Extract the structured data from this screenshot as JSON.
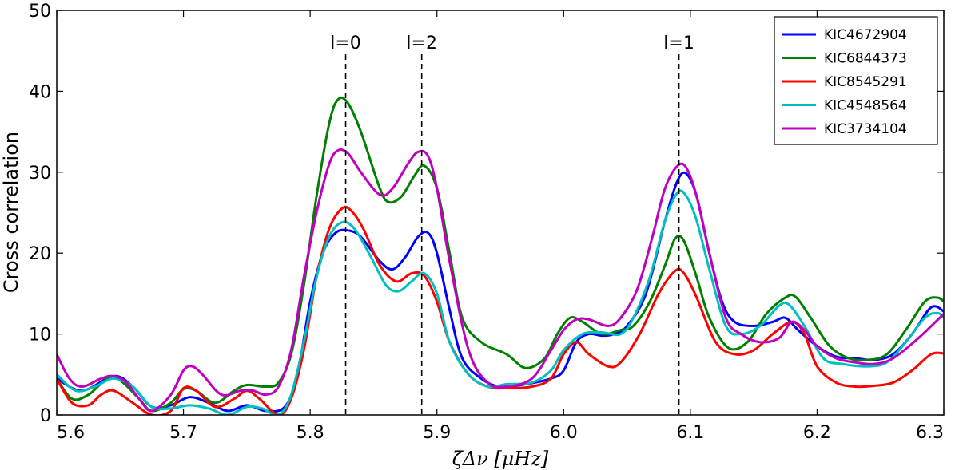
{
  "chart_data": {
    "type": "line",
    "title": "",
    "xlabel": "ζΔν [μHz]",
    "ylabel": "Cross correlation",
    "xlim": [
      5.6,
      6.3
    ],
    "ylim": [
      0,
      50
    ],
    "xticks": [
      5.6,
      5.7,
      5.8,
      5.9,
      6.0,
      6.1,
      6.2,
      6.3
    ],
    "xtick_labels": [
      "5.6",
      "5.7",
      "5.8",
      "5.9",
      "6.0",
      "6.1",
      "6.2",
      "6.3"
    ],
    "yticks": [
      0,
      10,
      20,
      30,
      40,
      50
    ],
    "ytick_labels": [
      "0",
      "10",
      "20",
      "30",
      "40",
      "50"
    ],
    "grid": false,
    "legend_position": "top-right",
    "annotations": [
      {
        "label": "l=0",
        "x": 5.828
      },
      {
        "label": "l=2",
        "x": 5.888
      },
      {
        "label": "l=1",
        "x": 6.091
      }
    ],
    "series": [
      {
        "name": "KIC4672904",
        "color": "#0000ff",
        "points": [
          [
            5.6,
            4.5
          ],
          [
            5.62,
            3.0
          ],
          [
            5.645,
            4.8
          ],
          [
            5.66,
            3.5
          ],
          [
            5.675,
            1.0
          ],
          [
            5.69,
            1.2
          ],
          [
            5.705,
            2.2
          ],
          [
            5.72,
            1.5
          ],
          [
            5.735,
            0.5
          ],
          [
            5.75,
            1.2
          ],
          [
            5.765,
            0.5
          ],
          [
            5.78,
            1.0
          ],
          [
            5.79,
            5.0
          ],
          [
            5.8,
            14.0
          ],
          [
            5.81,
            20.0
          ],
          [
            5.82,
            22.5
          ],
          [
            5.83,
            22.8
          ],
          [
            5.84,
            22.0
          ],
          [
            5.855,
            19.0
          ],
          [
            5.865,
            18.0
          ],
          [
            5.875,
            19.5
          ],
          [
            5.885,
            22.0
          ],
          [
            5.893,
            22.5
          ],
          [
            5.9,
            20.0
          ],
          [
            5.91,
            13.0
          ],
          [
            5.92,
            7.0
          ],
          [
            5.935,
            4.5
          ],
          [
            5.95,
            3.5
          ],
          [
            5.97,
            3.8
          ],
          [
            5.99,
            4.5
          ],
          [
            6.0,
            5.5
          ],
          [
            6.01,
            9.0
          ],
          [
            6.02,
            10.0
          ],
          [
            6.03,
            9.8
          ],
          [
            6.04,
            10.0
          ],
          [
            6.05,
            11.0
          ],
          [
            6.065,
            15.0
          ],
          [
            6.08,
            24.0
          ],
          [
            6.09,
            29.0
          ],
          [
            6.097,
            29.8
          ],
          [
            6.105,
            27.0
          ],
          [
            6.115,
            20.0
          ],
          [
            6.125,
            14.0
          ],
          [
            6.135,
            11.5
          ],
          [
            6.15,
            11.0
          ],
          [
            6.165,
            11.5
          ],
          [
            6.175,
            12.0
          ],
          [
            6.185,
            10.5
          ],
          [
            6.2,
            8.5
          ],
          [
            6.215,
            7.2
          ],
          [
            6.23,
            7.0
          ],
          [
            6.245,
            6.8
          ],
          [
            6.26,
            7.5
          ],
          [
            6.275,
            10.0
          ],
          [
            6.29,
            13.3
          ],
          [
            6.3,
            12.8
          ]
        ]
      },
      {
        "name": "KIC6844373",
        "color": "#008000",
        "points": [
          [
            5.6,
            4.5
          ],
          [
            5.612,
            2.0
          ],
          [
            5.625,
            2.5
          ],
          [
            5.64,
            4.5
          ],
          [
            5.65,
            4.3
          ],
          [
            5.665,
            2.0
          ],
          [
            5.675,
            0.5
          ],
          [
            5.69,
            1.5
          ],
          [
            5.7,
            3.2
          ],
          [
            5.71,
            3.0
          ],
          [
            5.725,
            1.5
          ],
          [
            5.74,
            3.0
          ],
          [
            5.75,
            3.7
          ],
          [
            5.765,
            3.5
          ],
          [
            5.775,
            4.0
          ],
          [
            5.785,
            7.5
          ],
          [
            5.795,
            16.0
          ],
          [
            5.805,
            27.0
          ],
          [
            5.815,
            36.0
          ],
          [
            5.822,
            39.0
          ],
          [
            5.83,
            38.5
          ],
          [
            5.84,
            35.0
          ],
          [
            5.855,
            28.0
          ],
          [
            5.862,
            26.3
          ],
          [
            5.872,
            27.0
          ],
          [
            5.882,
            29.5
          ],
          [
            5.89,
            30.8
          ],
          [
            5.9,
            28.0
          ],
          [
            5.91,
            20.0
          ],
          [
            5.92,
            12.0
          ],
          [
            5.935,
            9.0
          ],
          [
            5.955,
            7.5
          ],
          [
            5.97,
            5.8
          ],
          [
            5.985,
            7.0
          ],
          [
            5.995,
            10.0
          ],
          [
            6.005,
            12.0
          ],
          [
            6.015,
            11.5
          ],
          [
            6.03,
            10.0
          ],
          [
            6.045,
            10.5
          ],
          [
            6.055,
            11.0
          ],
          [
            6.068,
            14.0
          ],
          [
            6.08,
            18.5
          ],
          [
            6.088,
            21.8
          ],
          [
            6.095,
            21.5
          ],
          [
            6.105,
            17.0
          ],
          [
            6.115,
            12.0
          ],
          [
            6.13,
            8.3
          ],
          [
            6.145,
            9.0
          ],
          [
            6.16,
            12.5
          ],
          [
            6.175,
            14.5
          ],
          [
            6.183,
            14.6
          ],
          [
            6.195,
            12.0
          ],
          [
            6.21,
            8.5
          ],
          [
            6.225,
            7.0
          ],
          [
            6.24,
            6.8
          ],
          [
            6.255,
            7.5
          ],
          [
            6.27,
            10.5
          ],
          [
            6.285,
            14.0
          ],
          [
            6.295,
            14.5
          ],
          [
            6.3,
            14.0
          ]
        ]
      },
      {
        "name": "KIC8545291",
        "color": "#ff0000",
        "points": [
          [
            5.6,
            4.5
          ],
          [
            5.612,
            1.5
          ],
          [
            5.625,
            1.2
          ],
          [
            5.635,
            2.5
          ],
          [
            5.645,
            3.0
          ],
          [
            5.66,
            1.5
          ],
          [
            5.675,
            0.0
          ],
          [
            5.69,
            0.5
          ],
          [
            5.7,
            3.3
          ],
          [
            5.71,
            3.0
          ],
          [
            5.725,
            1.0
          ],
          [
            5.74,
            2.0
          ],
          [
            5.75,
            3.0
          ],
          [
            5.76,
            2.0
          ],
          [
            5.775,
            0.0
          ],
          [
            5.785,
            2.0
          ],
          [
            5.795,
            8.0
          ],
          [
            5.805,
            17.0
          ],
          [
            5.815,
            23.0
          ],
          [
            5.825,
            25.5
          ],
          [
            5.832,
            25.3
          ],
          [
            5.842,
            23.0
          ],
          [
            5.855,
            18.5
          ],
          [
            5.868,
            16.5
          ],
          [
            5.88,
            17.5
          ],
          [
            5.89,
            17.2
          ],
          [
            5.9,
            14.0
          ],
          [
            5.91,
            9.0
          ],
          [
            5.925,
            5.0
          ],
          [
            5.94,
            3.5
          ],
          [
            5.955,
            3.3
          ],
          [
            5.975,
            3.5
          ],
          [
            5.99,
            4.5
          ],
          [
            6.0,
            7.5
          ],
          [
            6.01,
            9.0
          ],
          [
            6.02,
            7.5
          ],
          [
            6.035,
            6.0
          ],
          [
            6.045,
            6.5
          ],
          [
            6.06,
            10.0
          ],
          [
            6.075,
            15.0
          ],
          [
            6.088,
            17.8
          ],
          [
            6.095,
            17.5
          ],
          [
            6.105,
            14.5
          ],
          [
            6.12,
            9.0
          ],
          [
            6.135,
            7.5
          ],
          [
            6.15,
            8.0
          ],
          [
            6.165,
            10.0
          ],
          [
            6.18,
            11.5
          ],
          [
            6.19,
            10.0
          ],
          [
            6.2,
            6.0
          ],
          [
            6.215,
            4.0
          ],
          [
            6.23,
            3.5
          ],
          [
            6.245,
            3.6
          ],
          [
            6.26,
            4.0
          ],
          [
            6.275,
            5.5
          ],
          [
            6.29,
            7.5
          ],
          [
            6.3,
            7.6
          ]
        ]
      },
      {
        "name": "KIC4548564",
        "color": "#00bfbf",
        "points": [
          [
            5.6,
            5.0
          ],
          [
            5.615,
            3.0
          ],
          [
            5.63,
            3.5
          ],
          [
            5.645,
            4.5
          ],
          [
            5.66,
            3.5
          ],
          [
            5.675,
            1.0
          ],
          [
            5.69,
            0.8
          ],
          [
            5.705,
            1.2
          ],
          [
            5.72,
            0.8
          ],
          [
            5.735,
            0.0
          ],
          [
            5.75,
            1.0
          ],
          [
            5.762,
            0.8
          ],
          [
            5.775,
            0.0
          ],
          [
            5.785,
            2.5
          ],
          [
            5.795,
            9.0
          ],
          [
            5.805,
            17.0
          ],
          [
            5.815,
            22.0
          ],
          [
            5.825,
            23.8
          ],
          [
            5.835,
            23.0
          ],
          [
            5.848,
            19.5
          ],
          [
            5.86,
            16.0
          ],
          [
            5.87,
            15.3
          ],
          [
            5.88,
            16.5
          ],
          [
            5.89,
            17.5
          ],
          [
            5.9,
            15.0
          ],
          [
            5.91,
            9.0
          ],
          [
            5.925,
            5.0
          ],
          [
            5.94,
            3.5
          ],
          [
            5.955,
            3.8
          ],
          [
            5.975,
            4.0
          ],
          [
            5.99,
            5.5
          ],
          [
            6.0,
            8.0
          ],
          [
            6.015,
            10.0
          ],
          [
            6.03,
            10.2
          ],
          [
            6.045,
            10.0
          ],
          [
            6.055,
            12.0
          ],
          [
            6.068,
            17.0
          ],
          [
            6.08,
            24.0
          ],
          [
            6.09,
            27.5
          ],
          [
            6.097,
            27.0
          ],
          [
            6.105,
            24.0
          ],
          [
            6.115,
            18.0
          ],
          [
            6.128,
            11.0
          ],
          [
            6.14,
            10.0
          ],
          [
            6.155,
            11.0
          ],
          [
            6.17,
            13.5
          ],
          [
            6.178,
            13.6
          ],
          [
            6.19,
            11.0
          ],
          [
            6.205,
            7.0
          ],
          [
            6.22,
            6.3
          ],
          [
            6.24,
            6.0
          ],
          [
            6.255,
            6.5
          ],
          [
            6.27,
            9.0
          ],
          [
            6.285,
            12.0
          ],
          [
            6.295,
            12.6
          ],
          [
            6.3,
            12.0
          ]
        ]
      },
      {
        "name": "KIC3734104",
        "color": "#bf00bf",
        "points": [
          [
            5.6,
            7.5
          ],
          [
            5.61,
            4.5
          ],
          [
            5.62,
            3.5
          ],
          [
            5.635,
            4.5
          ],
          [
            5.645,
            4.8
          ],
          [
            5.655,
            4.0
          ],
          [
            5.665,
            2.0
          ],
          [
            5.675,
            0.5
          ],
          [
            5.69,
            2.5
          ],
          [
            5.7,
            5.5
          ],
          [
            5.707,
            6.0
          ],
          [
            5.715,
            5.0
          ],
          [
            5.73,
            2.5
          ],
          [
            5.745,
            3.0
          ],
          [
            5.755,
            3.0
          ],
          [
            5.765,
            2.5
          ],
          [
            5.775,
            3.5
          ],
          [
            5.785,
            8.0
          ],
          [
            5.795,
            17.0
          ],
          [
            5.805,
            25.0
          ],
          [
            5.815,
            31.0
          ],
          [
            5.822,
            32.7
          ],
          [
            5.83,
            32.3
          ],
          [
            5.84,
            30.0
          ],
          [
            5.855,
            27.2
          ],
          [
            5.865,
            28.0
          ],
          [
            5.877,
            31.0
          ],
          [
            5.885,
            32.5
          ],
          [
            5.893,
            32.0
          ],
          [
            5.9,
            28.0
          ],
          [
            5.91,
            19.0
          ],
          [
            5.925,
            8.0
          ],
          [
            5.94,
            4.0
          ],
          [
            5.955,
            3.5
          ],
          [
            5.975,
            4.5
          ],
          [
            5.99,
            8.0
          ],
          [
            6.0,
            10.5
          ],
          [
            6.01,
            11.8
          ],
          [
            6.02,
            11.8
          ],
          [
            6.035,
            11.0
          ],
          [
            6.045,
            12.0
          ],
          [
            6.058,
            15.5
          ],
          [
            6.07,
            22.0
          ],
          [
            6.08,
            28.0
          ],
          [
            6.09,
            30.8
          ],
          [
            6.097,
            30.5
          ],
          [
            6.105,
            27.0
          ],
          [
            6.115,
            20.0
          ],
          [
            6.128,
            12.0
          ],
          [
            6.14,
            10.0
          ],
          [
            6.155,
            9.0
          ],
          [
            6.17,
            9.5
          ],
          [
            6.18,
            11.5
          ],
          [
            6.19,
            10.5
          ],
          [
            6.2,
            8.5
          ],
          [
            6.215,
            7.0
          ],
          [
            6.23,
            6.5
          ],
          [
            6.245,
            6.3
          ],
          [
            6.26,
            7.0
          ],
          [
            6.28,
            9.5
          ],
          [
            6.3,
            12.5
          ]
        ]
      }
    ]
  }
}
